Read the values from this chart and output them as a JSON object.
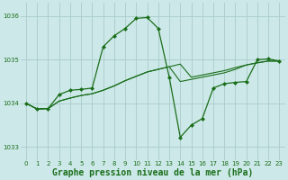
{
  "background_color": "#cce8e8",
  "grid_color": "#aacccc",
  "line_color": "#1a6e1a",
  "xlabel": "Graphe pression niveau de la mer (hPa)",
  "xlabel_fontsize": 7,
  "tick_fontsize": 5,
  "ylim": [
    1032.7,
    1036.3
  ],
  "xlim": [
    -0.5,
    23.5
  ],
  "yticks": [
    1033,
    1034,
    1035,
    1036
  ],
  "xticks": [
    0,
    1,
    2,
    3,
    4,
    5,
    6,
    7,
    8,
    9,
    10,
    11,
    12,
    13,
    14,
    15,
    16,
    17,
    18,
    19,
    20,
    21,
    22,
    23
  ],
  "series": [
    {
      "x": [
        0,
        1,
        2,
        3,
        4,
        5,
        6,
        7,
        8,
        9,
        10,
        11,
        12,
        13,
        14,
        15,
        16,
        17,
        18,
        19,
        20,
        21,
        22,
        23
      ],
      "y": [
        1034.0,
        1033.87,
        1033.88,
        1034.05,
        1034.12,
        1034.18,
        1034.22,
        1034.3,
        1034.4,
        1034.52,
        1034.62,
        1034.72,
        1034.78,
        1034.84,
        1034.9,
        1034.6,
        1034.65,
        1034.7,
        1034.75,
        1034.82,
        1034.88,
        1034.93,
        1034.97,
        1034.97
      ],
      "marker": false,
      "linewidth": 0.8
    },
    {
      "x": [
        0,
        1,
        2,
        3,
        4,
        5,
        6,
        7,
        8,
        9,
        10,
        11,
        12,
        13,
        14,
        15,
        16,
        17,
        18,
        19,
        20,
        21,
        22,
        23
      ],
      "y": [
        1034.0,
        1033.87,
        1033.88,
        1034.05,
        1034.12,
        1034.18,
        1034.22,
        1034.3,
        1034.4,
        1034.52,
        1034.62,
        1034.72,
        1034.78,
        1034.84,
        1034.5,
        1034.55,
        1034.6,
        1034.65,
        1034.7,
        1034.78,
        1034.88,
        1034.93,
        1034.97,
        1034.97
      ],
      "marker": false,
      "linewidth": 0.8
    },
    {
      "x": [
        0,
        1,
        2,
        3,
        4,
        5,
        6,
        7,
        8,
        9,
        10,
        11,
        12,
        13,
        14,
        15,
        16,
        17,
        18,
        19,
        20,
        21,
        22,
        23
      ],
      "y": [
        1034.0,
        1033.87,
        1033.88,
        1034.2,
        1034.3,
        1034.32,
        1034.35,
        1035.3,
        1035.55,
        1035.72,
        1035.95,
        1035.97,
        1035.72,
        1034.6,
        1033.22,
        1033.5,
        1033.65,
        1034.35,
        1034.45,
        1034.48,
        1034.5,
        1035.0,
        1035.02,
        1034.97
      ],
      "marker": true,
      "linewidth": 0.9
    }
  ]
}
